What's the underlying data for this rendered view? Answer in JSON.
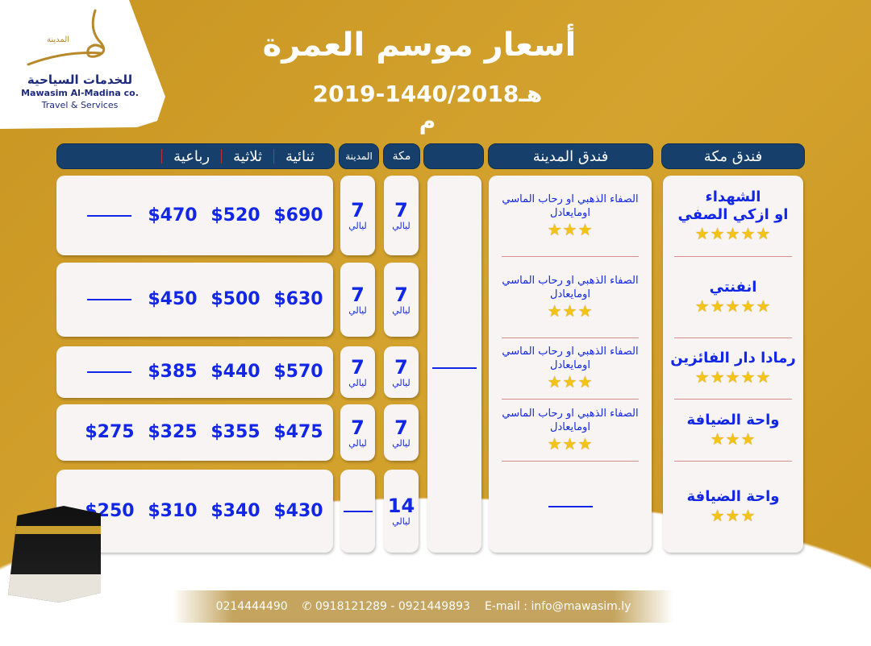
{
  "brand": {
    "arabic_small": "المدينة",
    "arabic_name": "للخدمات السياحية",
    "english_name": "Mawasim Al-Madina co.",
    "tagline": "Travel & Services"
  },
  "title": "أسعار موسم العمرة",
  "subtitle": "هـ1440/2018-2019 م",
  "headers": {
    "makkah_hotel": "فندق مكة",
    "madina_hotel": "فندق المدينة",
    "blank": "",
    "makkah": "مكة",
    "madina": "المدينة",
    "double": "ثنائية",
    "triple": "ثلاثية",
    "quad": "رباعية"
  },
  "makkah_hotels": [
    {
      "name": "الشهداء",
      "name2": "او ازكي الصفي",
      "stars": 5,
      "stars_text": "★★★★★"
    },
    {
      "name": "انفنتي",
      "name2": "",
      "stars": 5,
      "stars_text": "★★★★★"
    },
    {
      "name": "رمادا دار الفائزين",
      "name2": "",
      "stars": 5,
      "stars_text": "★★★★★"
    },
    {
      "name": "واحة الضيافة",
      "name2": "",
      "stars": 3,
      "stars_text": "★★★"
    },
    {
      "name": "واحة الضيافة",
      "name2": "",
      "stars": 3,
      "stars_text": "★★★"
    }
  ],
  "madina_hotels": [
    {
      "name": "الصفاء الذهبي او رحاب الماسي",
      "name2": "اومايعادل",
      "stars": 3,
      "stars_text": "★★★"
    },
    {
      "name": "الصفاء الذهبي او رحاب الماسي",
      "name2": "اومايعادل",
      "stars": 3,
      "stars_text": "★★★"
    },
    {
      "name": "الصفاء الذهبي او رحاب الماسي",
      "name2": "اومايعادل",
      "stars": 3,
      "stars_text": "★★★"
    },
    {
      "name": "الصفاء الذهبي او رحاب الماسي",
      "name2": "اومايعادل",
      "stars": 3,
      "stars_text": "★★★"
    },
    {
      "name": "",
      "name2": "",
      "stars": 0,
      "stars_text": ""
    }
  ],
  "nights_label": "ليالي",
  "rows": [
    {
      "makkah_nights": "7",
      "madina_nights": "7",
      "double": "$690",
      "triple": "$520",
      "quad": "$470",
      "quint": ""
    },
    {
      "makkah_nights": "7",
      "madina_nights": "7",
      "double": "$630",
      "triple": "$500",
      "quad": "$450",
      "quint": ""
    },
    {
      "makkah_nights": "7",
      "madina_nights": "7",
      "double": "$570",
      "triple": "$440",
      "quad": "$385",
      "quint": ""
    },
    {
      "makkah_nights": "7",
      "madina_nights": "7",
      "double": "$475",
      "triple": "$355",
      "quad": "$325",
      "quint": "$275"
    },
    {
      "makkah_nights": "14",
      "madina_nights": "",
      "double": "$430",
      "triple": "$340",
      "quad": "$310",
      "quint": "$250"
    }
  ],
  "footer": {
    "phone1": "0214444490",
    "phone_icon": "phone-icon",
    "phones": "0918121289 - 0921449893",
    "email": "E-mail : info@mawasim.ly"
  },
  "colors": {
    "gold": "#c99522",
    "navy": "#16406b",
    "price_blue": "#1227e6",
    "star": "#f3c316"
  }
}
